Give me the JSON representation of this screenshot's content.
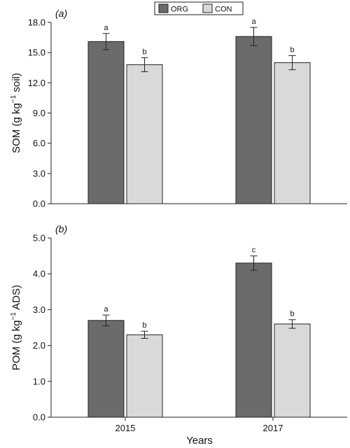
{
  "legend": {
    "entries": [
      {
        "label": "ORG",
        "color": "#6b6b6d"
      },
      {
        "label": "CON",
        "color": "#d9d9d9"
      }
    ]
  },
  "xlabel": "Years",
  "chart_data": [
    {
      "type": "bar",
      "panel_label": "(a)",
      "ylabel_main": "SOM (g kg",
      "ylabel_sup": "−1",
      "ylabel_tail": " soil)",
      "categories": [
        "2015",
        "2017"
      ],
      "ylim": [
        0,
        18
      ],
      "yticks": [
        "0.0",
        "3.0",
        "6.0",
        "9.0",
        "12.0",
        "15.0",
        "18.0"
      ],
      "series": [
        {
          "name": "ORG",
          "color": "#6b6b6d",
          "values": [
            16.1,
            16.6
          ],
          "errors": [
            0.8,
            0.9
          ],
          "labels": [
            "a",
            "a"
          ]
        },
        {
          "name": "CON",
          "color": "#d9d9d9",
          "values": [
            13.8,
            14.0
          ],
          "errors": [
            0.7,
            0.7
          ],
          "labels": [
            "b",
            "b"
          ]
        }
      ]
    },
    {
      "type": "bar",
      "panel_label": "(b)",
      "ylabel_main": "POM (g kg",
      "ylabel_sup": "−1",
      "ylabel_tail": " ADS)",
      "categories": [
        "2015",
        "2017"
      ],
      "ylim": [
        0,
        5
      ],
      "yticks": [
        "0.0",
        "1.0",
        "2.0",
        "3.0",
        "4.0",
        "5.0"
      ],
      "series": [
        {
          "name": "ORG",
          "color": "#6b6b6d",
          "values": [
            2.7,
            4.3
          ],
          "errors": [
            0.15,
            0.2
          ],
          "labels": [
            "a",
            "c"
          ]
        },
        {
          "name": "CON",
          "color": "#d9d9d9",
          "values": [
            2.3,
            2.6
          ],
          "errors": [
            0.1,
            0.12
          ],
          "labels": [
            "b",
            "b"
          ]
        }
      ]
    }
  ]
}
